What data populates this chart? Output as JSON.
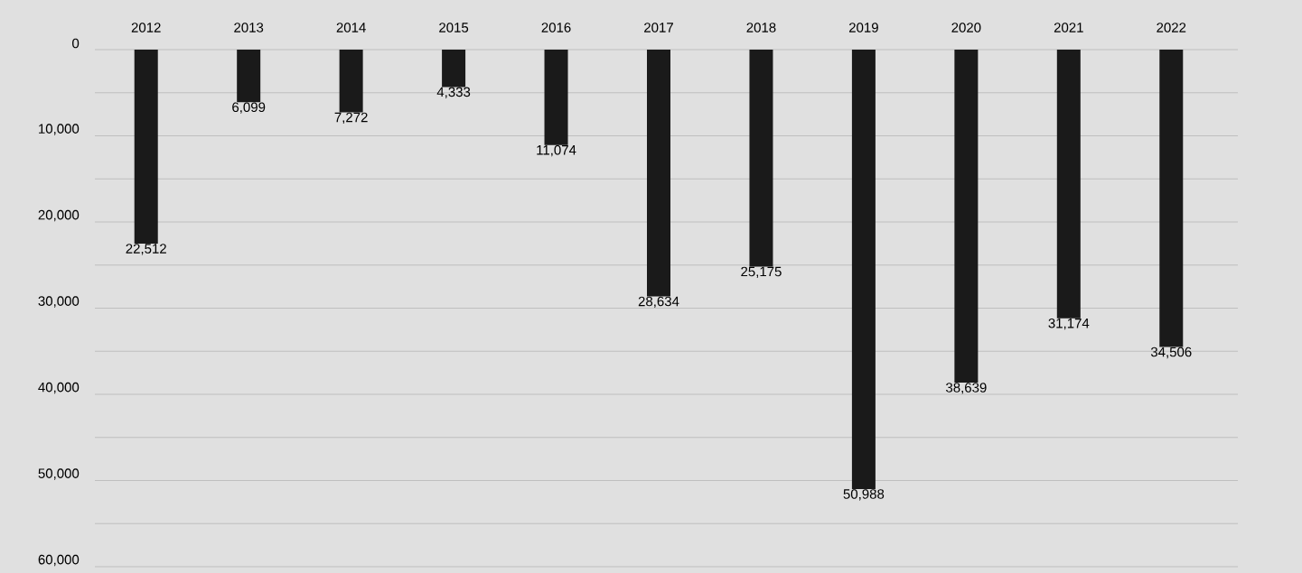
{
  "chart_data": {
    "type": "bar",
    "categories": [
      "2012",
      "2013",
      "2014",
      "2015",
      "2016",
      "2017",
      "2018",
      "2019",
      "2020",
      "2021",
      "2022"
    ],
    "values": [
      22512,
      6099,
      7272,
      4333,
      11074,
      28634,
      25175,
      50988,
      38639,
      31174,
      34506
    ],
    "value_labels": [
      "22,512",
      "6,099",
      "7,272",
      "4,333",
      "11,074",
      "28,634",
      "25,175",
      "50,988",
      "38,639",
      "31,174",
      "34,506"
    ],
    "color": "#1a1a1a",
    "ylim": [
      60000,
      0
    ],
    "yticks": [
      {
        "value": 0,
        "label": "0"
      },
      {
        "value": 5000,
        "label": null
      },
      {
        "value": 10000,
        "label": "10,000"
      },
      {
        "value": 15000,
        "label": null
      },
      {
        "value": 20000,
        "label": "20,000"
      },
      {
        "value": 25000,
        "label": null
      },
      {
        "value": 30000,
        "label": "30,000"
      },
      {
        "value": 35000,
        "label": null
      },
      {
        "value": 40000,
        "label": "40,000"
      },
      {
        "value": 45000,
        "label": null
      },
      {
        "value": 50000,
        "label": "50,000"
      },
      {
        "value": 55000,
        "label": null
      },
      {
        "value": 60000,
        "label": "60,000"
      }
    ],
    "grid": "y"
  }
}
